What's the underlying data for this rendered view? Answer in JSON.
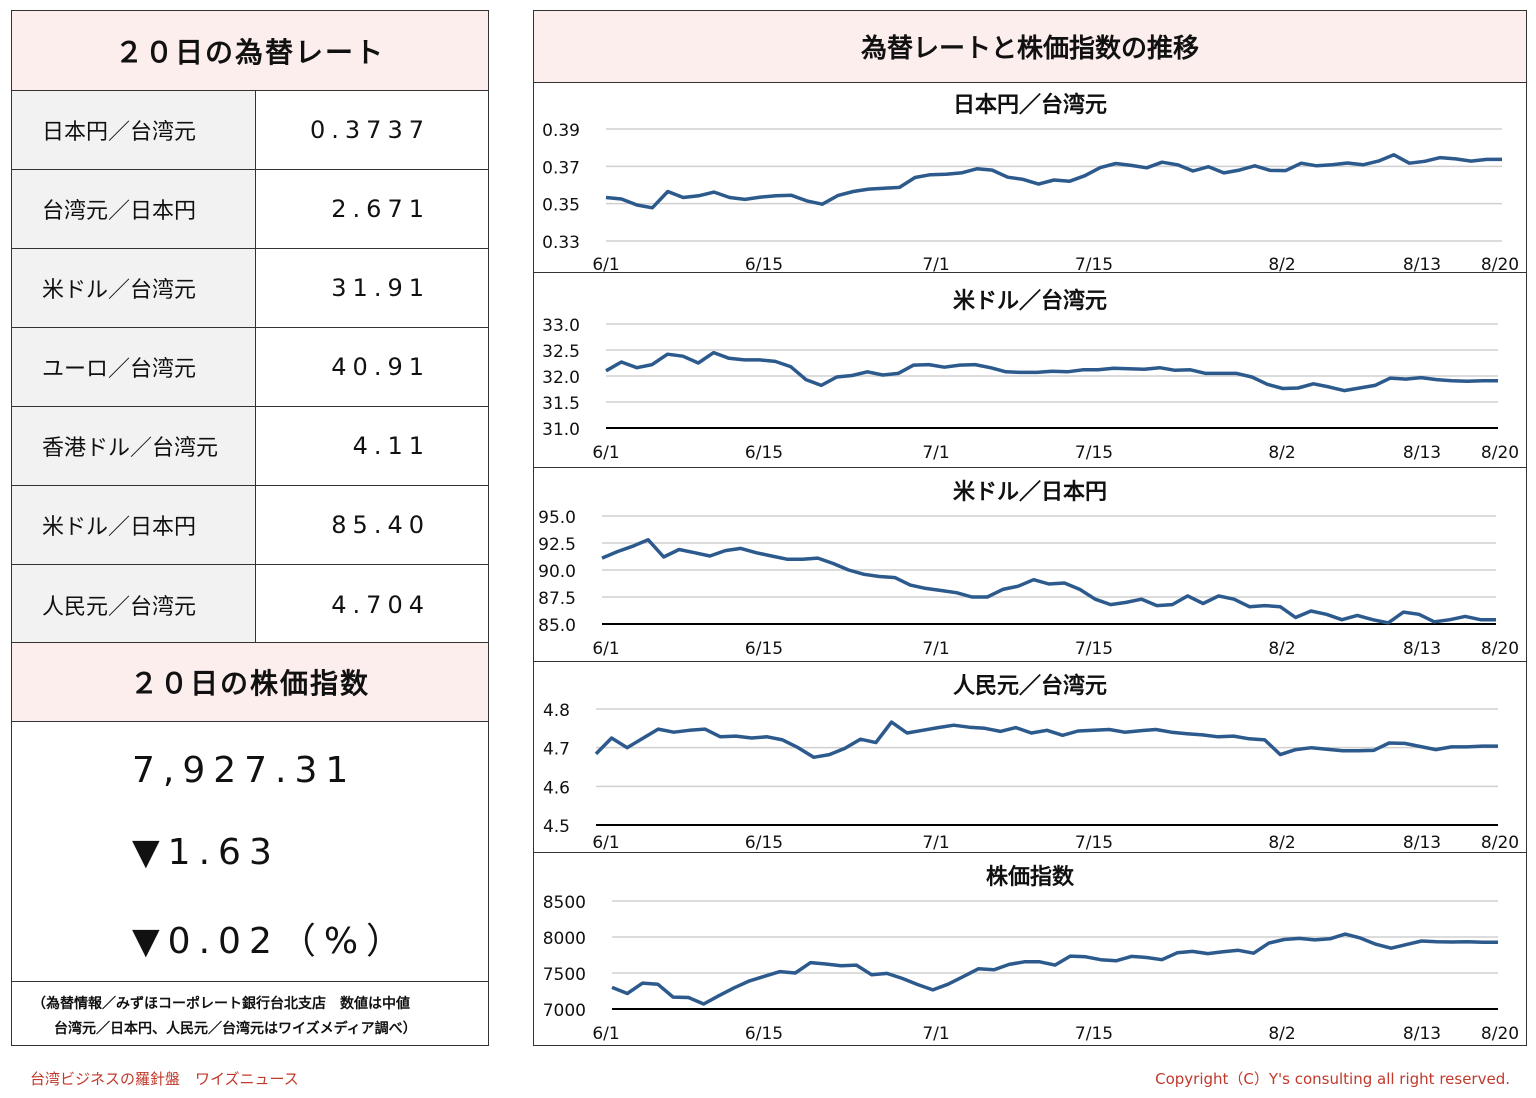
{
  "left": {
    "rates_title": "２０日の為替レート",
    "rates": [
      {
        "label": "日本円／台湾元",
        "value": "0.3737"
      },
      {
        "label": "台湾元／日本円",
        "value": "2.671"
      },
      {
        "label": "米ドル／台湾元",
        "value": "31.91"
      },
      {
        "label": "ユーロ／台湾元",
        "value": "40.91"
      },
      {
        "label": "香港ドル／台湾元",
        "value": "4.11"
      },
      {
        "label": "米ドル／日本円",
        "value": "85.40"
      },
      {
        "label": "人民元／台湾元",
        "value": "4.704"
      }
    ],
    "stock_title": "２０日の株価指数",
    "stock_value": "7,927.31",
    "stock_change": "▼1.63",
    "stock_change_pct": "▼0.02（%）",
    "footnote_line1": "（為替情報／みずほコーポレート銀行台北支店　数値は中値",
    "footnote_line2": "台湾元／日本円、人民元／台湾元はワイズメディア調べ）"
  },
  "right": {
    "title": "為替レートと株価指数の推移"
  },
  "footer": {
    "left": "台湾ビジネスの羅針盤　ワイズニュース",
    "right": "Copyright（C）Y's consulting all right reserved."
  },
  "chart_data": [
    {
      "type": "line",
      "title": "日本円／台湾元",
      "xlabels": [
        "6/1",
        "6/15",
        "7/1",
        "7/15",
        "8/2",
        "8/13",
        "8/20"
      ],
      "xlabel_idx": [
        0,
        12,
        23,
        34,
        49,
        59,
        64
      ],
      "yticks": [
        "0.39",
        "0.37",
        "0.35",
        "0.33"
      ],
      "ylim": [
        0.33,
        0.39
      ],
      "color": "#2d5a8c",
      "values": [
        0.3533,
        0.3525,
        0.3493,
        0.3478,
        0.3565,
        0.3533,
        0.3542,
        0.3562,
        0.3533,
        0.3523,
        0.3535,
        0.3542,
        0.3545,
        0.3515,
        0.3497,
        0.3543,
        0.3565,
        0.3578,
        0.3583,
        0.3587,
        0.364,
        0.3655,
        0.3658,
        0.3665,
        0.3687,
        0.368,
        0.3642,
        0.363,
        0.3605,
        0.3627,
        0.362,
        0.365,
        0.3693,
        0.3715,
        0.3705,
        0.3692,
        0.3722,
        0.3708,
        0.3675,
        0.3698,
        0.3665,
        0.368,
        0.3703,
        0.3678,
        0.3677,
        0.3717,
        0.3703,
        0.3708,
        0.3718,
        0.3708,
        0.3728,
        0.3762,
        0.3717,
        0.3727,
        0.3747,
        0.374,
        0.3728,
        0.3737,
        0.3737
      ]
    },
    {
      "type": "line",
      "title": "米ドル／台湾元",
      "xlabels": [
        "6/1",
        "6/15",
        "7/1",
        "7/15",
        "8/2",
        "8/13",
        "8/20"
      ],
      "xlabel_idx": [
        0,
        12,
        23,
        34,
        49,
        59,
        64
      ],
      "yticks": [
        "33.0",
        "32.5",
        "32.0",
        "31.5",
        "31.0"
      ],
      "ylim": [
        31.0,
        33.0
      ],
      "color": "#2d5a8c",
      "values": [
        32.1,
        32.27,
        32.16,
        32.22,
        32.42,
        32.38,
        32.25,
        32.45,
        32.34,
        32.31,
        32.31,
        32.28,
        32.18,
        31.93,
        31.82,
        31.98,
        32.01,
        32.08,
        32.02,
        32.05,
        32.21,
        32.22,
        32.17,
        32.21,
        32.22,
        32.16,
        32.08,
        32.07,
        32.07,
        32.09,
        32.08,
        32.12,
        32.12,
        32.15,
        32.14,
        32.13,
        32.16,
        32.11,
        32.12,
        32.05,
        32.05,
        32.05,
        31.98,
        31.84,
        31.76,
        31.77,
        31.85,
        31.79,
        31.72,
        31.77,
        31.82,
        31.96,
        31.94,
        31.97,
        31.93,
        31.91,
        31.9,
        31.91,
        31.91
      ]
    },
    {
      "type": "line",
      "title": "米ドル／日本円",
      "xlabels": [
        "6/1",
        "6/15",
        "7/1",
        "7/15",
        "8/2",
        "8/13",
        "8/20"
      ],
      "xlabel_idx": [
        0,
        12,
        23,
        34,
        49,
        59,
        64
      ],
      "yticks": [
        "95.0",
        "92.5",
        "90.0",
        "87.5",
        "85.0"
      ],
      "ylim": [
        85.0,
        95.0
      ],
      "color": "#2d5a8c",
      "values": [
        91.1,
        91.7,
        92.2,
        92.8,
        91.2,
        91.9,
        91.6,
        91.3,
        91.8,
        92.0,
        91.6,
        91.3,
        91.0,
        91.0,
        91.1,
        90.6,
        90.0,
        89.6,
        89.4,
        89.3,
        88.6,
        88.3,
        88.1,
        87.9,
        87.5,
        87.5,
        88.2,
        88.5,
        89.1,
        88.7,
        88.8,
        88.2,
        87.3,
        86.8,
        87.0,
        87.3,
        86.7,
        86.8,
        87.6,
        86.9,
        87.6,
        87.3,
        86.6,
        86.7,
        86.6,
        85.6,
        86.2,
        85.9,
        85.4,
        85.8,
        85.4,
        85.1,
        86.1,
        85.9,
        85.2,
        85.4,
        85.7,
        85.4,
        85.4
      ]
    },
    {
      "type": "line",
      "title": "人民元／台湾元",
      "xlabels": [
        "6/1",
        "6/15",
        "7/1",
        "7/15",
        "8/2",
        "8/13",
        "8/20"
      ],
      "xlabel_idx": [
        0,
        12,
        23,
        34,
        49,
        59,
        64
      ],
      "yticks": [
        "4.8",
        "4.7",
        "4.6",
        "4.5"
      ],
      "ylim": [
        4.5,
        4.8
      ],
      "color": "#2d5a8c",
      "values": [
        4.684,
        4.725,
        4.7,
        4.724,
        4.748,
        4.74,
        4.745,
        4.748,
        4.728,
        4.73,
        4.725,
        4.728,
        4.72,
        4.7,
        4.675,
        4.682,
        4.698,
        4.722,
        4.713,
        4.766,
        4.738,
        4.745,
        4.752,
        4.758,
        4.753,
        4.75,
        4.742,
        4.752,
        4.738,
        4.745,
        4.732,
        4.743,
        4.745,
        4.747,
        4.74,
        4.744,
        4.747,
        4.74,
        4.736,
        4.733,
        4.728,
        4.73,
        4.723,
        4.72,
        4.682,
        4.695,
        4.7,
        4.696,
        4.692,
        4.692,
        4.693,
        4.712,
        4.711,
        4.703,
        4.695,
        4.702,
        4.702,
        4.704,
        4.704
      ]
    },
    {
      "type": "line",
      "title": "株価指数",
      "xlabels": [
        "6/1",
        "6/15",
        "7/1",
        "7/15",
        "8/2",
        "8/13",
        "8/20"
      ],
      "xlabel_idx": [
        0,
        12,
        23,
        34,
        49,
        59,
        64
      ],
      "yticks": [
        "8500",
        "8000",
        "7500",
        "7000"
      ],
      "ylim": [
        7000,
        8500
      ],
      "color": "#2d5a8c",
      "values": [
        7300,
        7215,
        7360,
        7345,
        7165,
        7160,
        7070,
        7185,
        7295,
        7390,
        7455,
        7520,
        7500,
        7645,
        7625,
        7600,
        7610,
        7475,
        7495,
        7425,
        7340,
        7265,
        7345,
        7450,
        7560,
        7545,
        7620,
        7655,
        7655,
        7610,
        7735,
        7725,
        7685,
        7670,
        7730,
        7715,
        7685,
        7780,
        7800,
        7770,
        7795,
        7815,
        7775,
        7915,
        7965,
        7980,
        7960,
        7975,
        8040,
        7985,
        7900,
        7845,
        7895,
        7945,
        7935,
        7930,
        7935,
        7927,
        7927
      ]
    }
  ]
}
